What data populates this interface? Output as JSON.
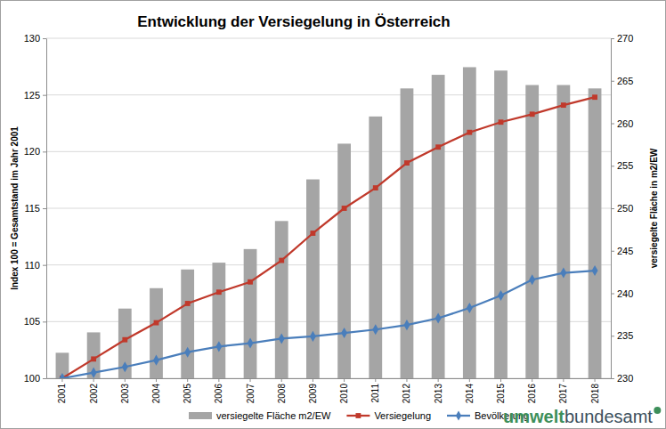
{
  "chart_data": {
    "type": "bar",
    "title": "Entwicklung der Versiegelung in Österreich",
    "y_label": "Index 100 = Gesamtstand im Jahr 2001",
    "y2_label": "versiegelte Fläche in m2/EW",
    "categories": [
      "2001",
      "2002",
      "2003",
      "2004",
      "2005",
      "2006",
      "2007",
      "2008",
      "2009",
      "2010",
      "2011",
      "2012",
      "2013",
      "2014",
      "2015",
      "2016",
      "2017",
      "2018"
    ],
    "series": [
      {
        "name": "versiegelte Fläche m2/EW",
        "type": "bar",
        "axis": "y2",
        "color": "#a5a5a5",
        "values": [
          233.0,
          235.4,
          238.2,
          240.6,
          242.8,
          243.6,
          245.2,
          248.5,
          253.4,
          257.6,
          260.8,
          264.1,
          265.7,
          266.6,
          266.2,
          264.5,
          264.5,
          264.1
        ]
      },
      {
        "name": "Versiegelung",
        "type": "line",
        "color": "#c0392b",
        "marker": "square",
        "line_style": "solid",
        "values": [
          100.0,
          101.7,
          103.4,
          104.9,
          106.6,
          107.6,
          108.5,
          110.4,
          112.8,
          115.0,
          116.8,
          119.0,
          120.4,
          121.7,
          122.6,
          123.3,
          124.1,
          124.8
        ]
      },
      {
        "name": "Bevölkerung",
        "type": "line",
        "color": "#4a7ebb",
        "marker": "diamond",
        "line_style": "solid",
        "values": [
          100.0,
          100.5,
          101.0,
          101.6,
          102.3,
          102.8,
          103.1,
          103.5,
          103.7,
          104.0,
          104.3,
          104.7,
          105.3,
          106.2,
          107.3,
          108.7,
          109.3,
          109.5
        ]
      }
    ],
    "ylim": [
      100,
      130
    ],
    "yticks": [
      100,
      105,
      110,
      115,
      120,
      125,
      130
    ],
    "y2lim": [
      230,
      270
    ],
    "y2ticks": [
      230,
      235,
      240,
      245,
      250,
      255,
      260,
      265,
      270
    ],
    "grid": true,
    "legend": "bottom",
    "annotations": [
      "umwelt",
      "bundesamt"
    ]
  }
}
